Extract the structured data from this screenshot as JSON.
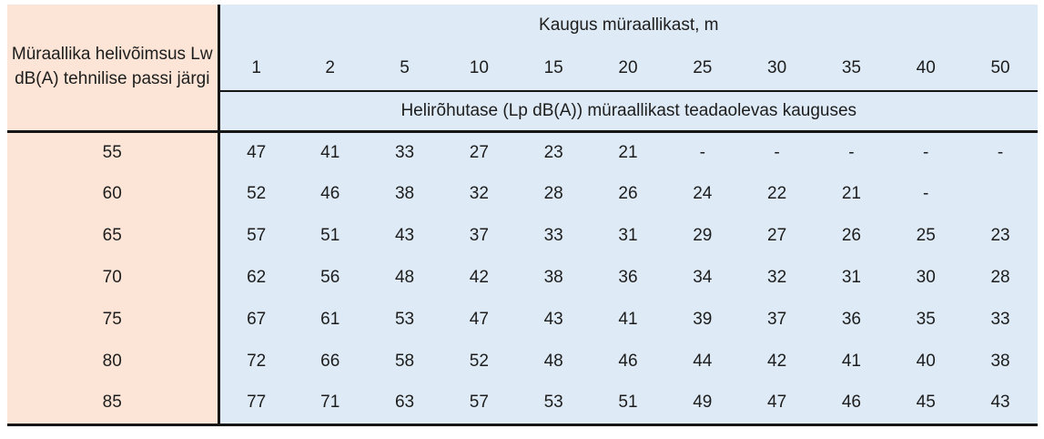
{
  "table": {
    "corner_header": "Müraallika helivõimsus Lw dB(A) tehnilise passi järgi",
    "distance_header": "Kaugus müraallikast, m",
    "distances": [
      "1",
      "2",
      "5",
      "10",
      "15",
      "20",
      "25",
      "30",
      "35",
      "40",
      "50"
    ],
    "subheader": "Helirõhutase (Lp dB(A)) müraallikast teadaolevas kauguses",
    "rows": [
      {
        "lw": "55",
        "values": [
          "47",
          "41",
          "33",
          "27",
          "23",
          "21",
          "-",
          "-",
          "-",
          "-",
          "-"
        ]
      },
      {
        "lw": "60",
        "values": [
          "52",
          "46",
          "38",
          "32",
          "28",
          "26",
          "24",
          "22",
          "21",
          "-",
          ""
        ]
      },
      {
        "lw": "65",
        "values": [
          "57",
          "51",
          "43",
          "37",
          "33",
          "31",
          "29",
          "27",
          "26",
          "25",
          "23"
        ]
      },
      {
        "lw": "70",
        "values": [
          "62",
          "56",
          "48",
          "42",
          "38",
          "36",
          "34",
          "32",
          "31",
          "30",
          "28"
        ]
      },
      {
        "lw": "75",
        "values": [
          "67",
          "61",
          "53",
          "47",
          "43",
          "41",
          "39",
          "37",
          "36",
          "35",
          "33"
        ]
      },
      {
        "lw": "80",
        "values": [
          "72",
          "66",
          "58",
          "52",
          "48",
          "46",
          "44",
          "42",
          "41",
          "40",
          "38"
        ]
      },
      {
        "lw": "85",
        "values": [
          "77",
          "71",
          "63",
          "57",
          "53",
          "51",
          "49",
          "47",
          "46",
          "45",
          "43"
        ]
      }
    ],
    "colors": {
      "row_header_bg": "#fce5d6",
      "data_bg": "#deeaf5",
      "line": "#161616"
    }
  }
}
